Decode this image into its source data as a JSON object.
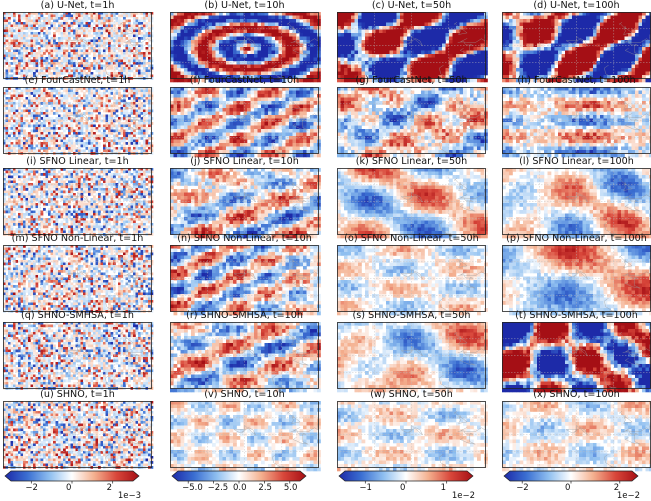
{
  "panels": [
    {
      "title": "(a) U-Net, t=1h",
      "style": "noise"
    },
    {
      "title": "(b) U-Net, t=10h",
      "style": "rings"
    },
    {
      "title": "(c) U-Net, t=50h",
      "style": "saturated"
    },
    {
      "title": "(d) U-Net, t=100h",
      "style": "saturated"
    },
    {
      "title": "(e) FourCastNet, t=1h",
      "style": "noise"
    },
    {
      "title": "(f) FourCastNet, t=10h",
      "style": "mottled"
    },
    {
      "title": "(g) FourCastNet, t=50h",
      "style": "mottled"
    },
    {
      "title": "(h) FourCastNet, t=100h",
      "style": "bands"
    },
    {
      "title": "(i) SFNO Linear, t=1h",
      "style": "noise"
    },
    {
      "title": "(j) SFNO Linear, t=10h",
      "style": "mottled"
    },
    {
      "title": "(k) SFNO Linear, t=50h",
      "style": "blobs"
    },
    {
      "title": "(l) SFNO Linear, t=100h",
      "style": "blobs"
    },
    {
      "title": "(m) SFNO Non-Linear, t=1h",
      "style": "noise"
    },
    {
      "title": "(n) SFNO Non-Linear, t=10h",
      "style": "mottled"
    },
    {
      "title": "(o) SFNO Non-Linear, t=50h",
      "style": "faint"
    },
    {
      "title": "(p) SFNO Non-Linear, t=100h",
      "style": "blobs"
    },
    {
      "title": "(q) SHNO-SMHSA, t=1h",
      "style": "noise"
    },
    {
      "title": "(r) SHNO-SMHSA, t=10h",
      "style": "mottled"
    },
    {
      "title": "(s) SHNO-SMHSA, t=50h",
      "style": "blobs"
    },
    {
      "title": "(t) SHNO-SMHSA, t=100h",
      "style": "saturated"
    },
    {
      "title": "(u) SHNO, t=1h",
      "style": "noise"
    },
    {
      "title": "(v) SHNO, t=10h",
      "style": "faint"
    },
    {
      "title": "(w) SHNO, t=50h",
      "style": "faint"
    },
    {
      "title": "(x) SHNO, t=100h",
      "style": "faint"
    }
  ],
  "colorbars": [
    {
      "ticks": [
        "−2",
        "0",
        "2"
      ],
      "tick_values": [
        -2,
        0,
        2
      ],
      "range": [
        -3,
        3
      ],
      "offset": "1e−3"
    },
    {
      "ticks": [
        "−5.0",
        "−2.5",
        "0.0",
        "2.5",
        "5.0"
      ],
      "tick_values": [
        -5,
        -2.5,
        0,
        2.5,
        5
      ],
      "range": [
        -6,
        6
      ],
      "offset": ""
    },
    {
      "ticks": [
        "−1",
        "0",
        "1"
      ],
      "tick_values": [
        -1,
        0,
        1
      ],
      "range": [
        -1.5,
        1.5
      ],
      "offset": "1e−2"
    },
    {
      "ticks": [
        "−2",
        "0",
        "2"
      ],
      "tick_values": [
        -2,
        0,
        2
      ],
      "range": [
        -2.5,
        2.5
      ],
      "offset": "1e−2"
    }
  ],
  "colormap": [
    "#1d2aa8",
    "#3b6fd2",
    "#8fbff0",
    "#ffffff",
    "#f4b08f",
    "#d8463a",
    "#a50f15"
  ]
}
